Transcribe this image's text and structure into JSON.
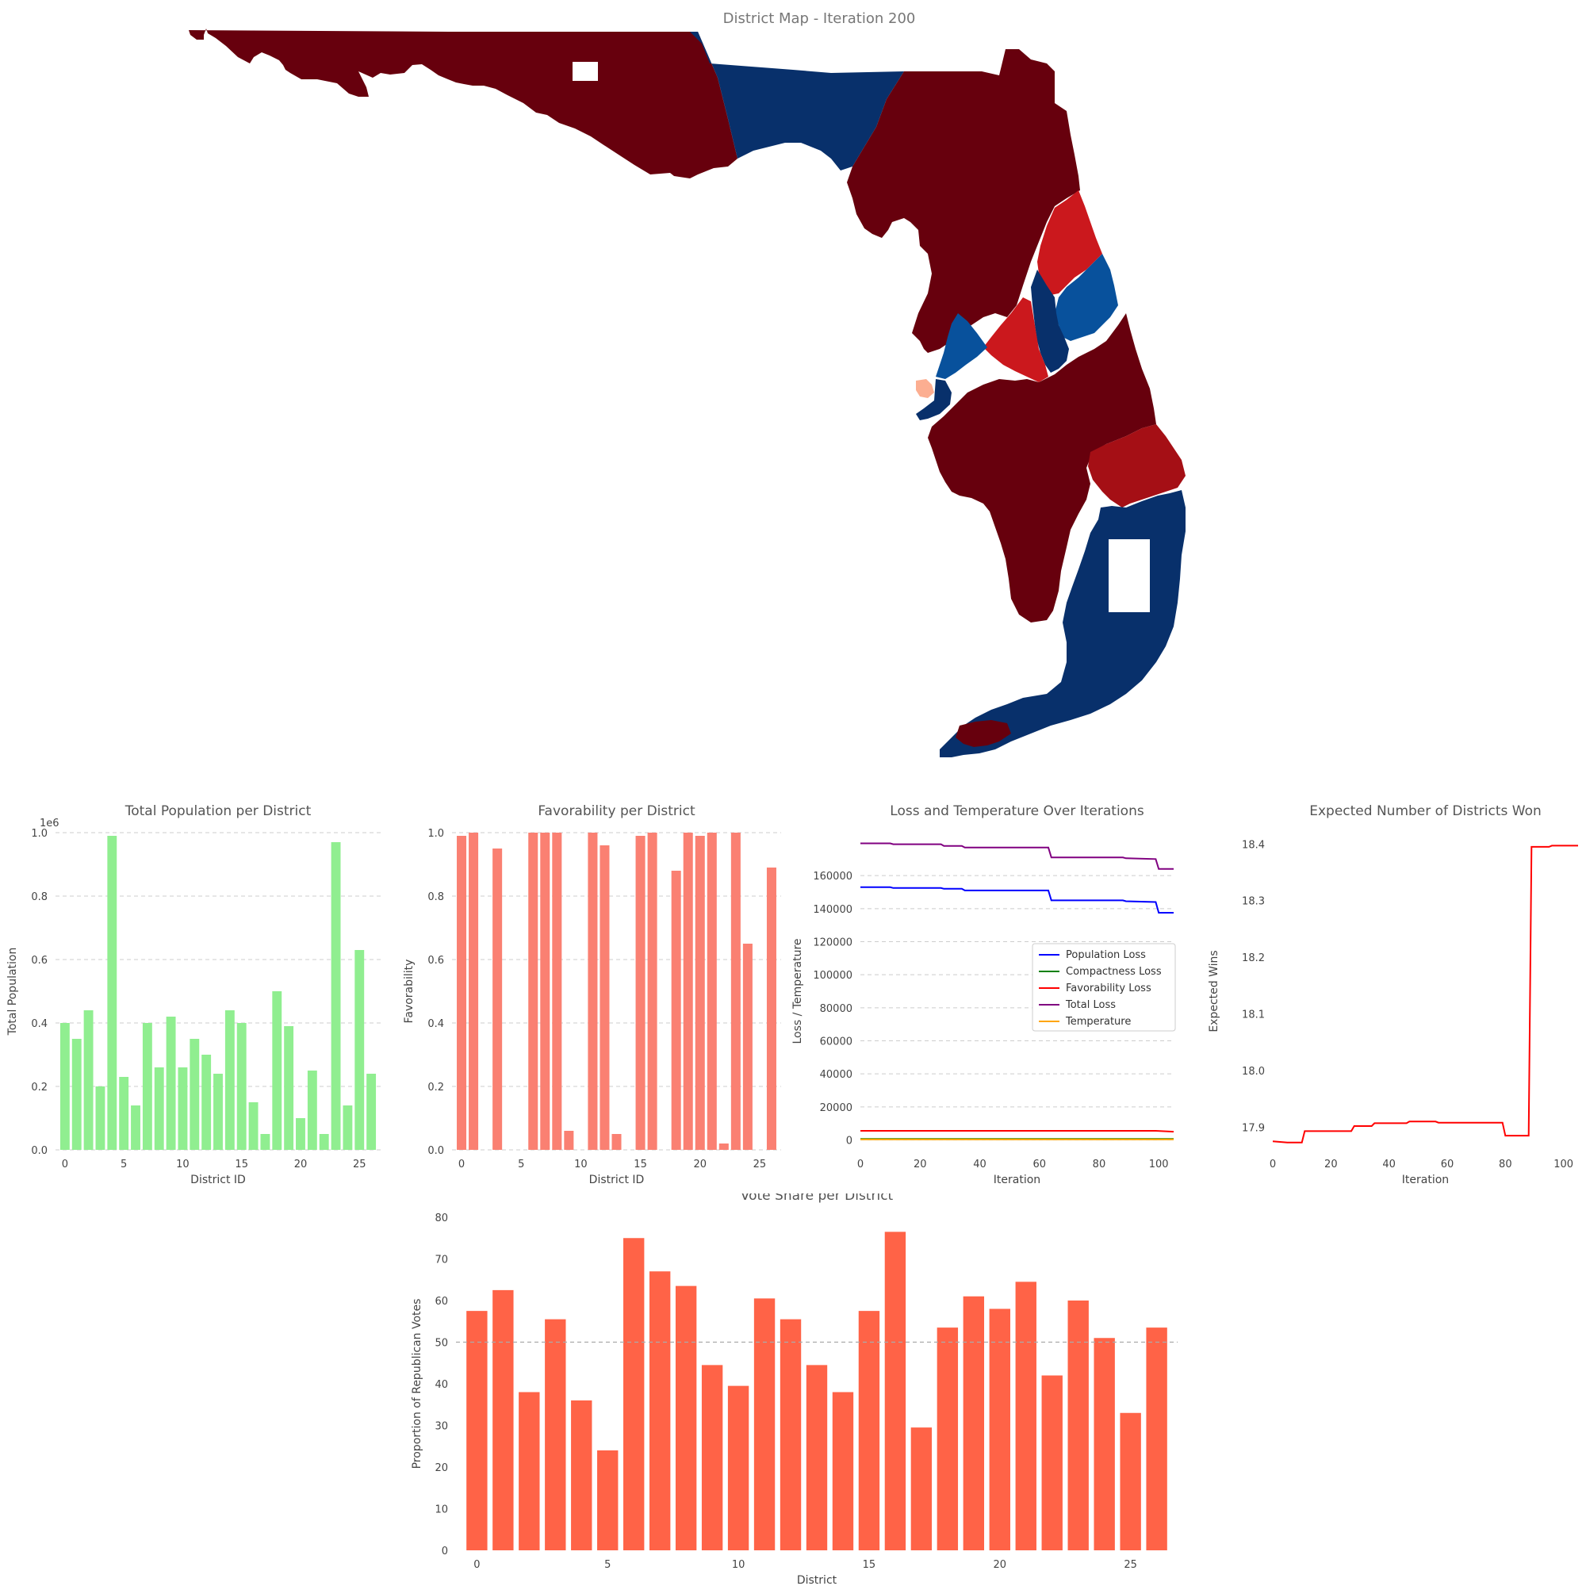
{
  "colors": {
    "rep_dark": "#67000d",
    "rep_mid": "#a50f15",
    "rep_bright": "#cb181d",
    "dem_dark": "#08306b",
    "dem_mid": "#08519c",
    "salmon_small": "#fcae91",
    "population_bar": "#90ee90",
    "favorability_bar": "#fa8072",
    "vote_bar": "#ff6347",
    "pop_loss": "#0000ff",
    "comp_loss": "#008000",
    "fav_loss": "#ff0000",
    "total_loss": "#800080",
    "temperature": "#ffa500",
    "expected_wins": "#ff0000"
  },
  "map": {
    "title": "District Map - Iteration 200"
  },
  "chart_data": [
    {
      "id": "population",
      "type": "bar",
      "title": "Total Population per District",
      "xlabel": "District ID",
      "ylabel": "Total Population",
      "offset_label": "1e6",
      "categories": [
        0,
        1,
        2,
        3,
        4,
        5,
        6,
        7,
        8,
        9,
        10,
        11,
        12,
        13,
        14,
        15,
        16,
        17,
        18,
        19,
        20,
        21,
        22,
        23,
        24,
        25,
        26
      ],
      "values": [
        0.4,
        0.35,
        0.44,
        0.2,
        0.99,
        0.23,
        0.14,
        0.4,
        0.26,
        0.42,
        0.26,
        0.35,
        0.3,
        0.24,
        0.44,
        0.4,
        0.15,
        0.05,
        0.5,
        0.39,
        0.1,
        0.25,
        0.05,
        0.97,
        0.14,
        0.63,
        0.24
      ],
      "ylim": [
        0,
        1.0
      ],
      "yticks": [
        "0.0",
        "0.2",
        "0.4",
        "0.6",
        "0.8",
        "1.0"
      ],
      "xticks": [
        "0",
        "5",
        "10",
        "15",
        "20",
        "25"
      ],
      "grid": true
    },
    {
      "id": "favorability",
      "type": "bar",
      "title": "Favorability per District",
      "xlabel": "District ID",
      "ylabel": "Favorability",
      "categories": [
        0,
        1,
        2,
        3,
        4,
        5,
        6,
        7,
        8,
        9,
        10,
        11,
        12,
        13,
        14,
        15,
        16,
        17,
        18,
        19,
        20,
        21,
        22,
        23,
        24,
        25,
        26
      ],
      "values": [
        0.99,
        1.0,
        0.0,
        0.95,
        0.0,
        0.0,
        1.0,
        1.0,
        1.0,
        0.06,
        0.0,
        1.0,
        0.96,
        0.05,
        0.0,
        0.99,
        1.0,
        0.0,
        0.88,
        1.0,
        0.99,
        1.0,
        0.02,
        1.0,
        0.65,
        0.0,
        0.89
      ],
      "ylim": [
        0,
        1.0
      ],
      "yticks": [
        "0.0",
        "0.2",
        "0.4",
        "0.6",
        "0.8",
        "1.0"
      ],
      "xticks": [
        "0",
        "5",
        "10",
        "15",
        "20",
        "25"
      ],
      "grid": true
    },
    {
      "id": "loss",
      "type": "line",
      "title": "Loss and Temperature Over Iterations",
      "xlabel": "Iteration",
      "ylabel": "Loss / Temperature",
      "xlim": [
        0,
        105
      ],
      "ylim": [
        -6000,
        186000
      ],
      "yticks": [
        "0",
        "20000",
        "40000",
        "60000",
        "80000",
        "100000",
        "120000",
        "140000",
        "160000"
      ],
      "xticks": [
        "0",
        "20",
        "40",
        "60",
        "80",
        "100"
      ],
      "legend_position": "center-right",
      "series": [
        {
          "name": "Population Loss",
          "x": [
            0,
            10,
            11,
            27,
            28,
            34,
            35,
            63,
            64,
            88,
            89,
            99,
            100,
            105
          ],
          "y": [
            153000,
            153000,
            152500,
            152500,
            152000,
            152000,
            151000,
            151000,
            145000,
            145000,
            144500,
            144000,
            137500,
            137500
          ]
        },
        {
          "name": "Compactness Loss",
          "x": [
            0,
            105
          ],
          "y": [
            600,
            600
          ]
        },
        {
          "name": "Favorability Loss",
          "x": [
            0,
            99,
            105
          ],
          "y": [
            5500,
            5500,
            5000
          ]
        },
        {
          "name": "Total Loss",
          "x": [
            0,
            10,
            11,
            27,
            28,
            34,
            35,
            63,
            64,
            88,
            89,
            99,
            100,
            105
          ],
          "y": [
            179500,
            179500,
            179000,
            179000,
            178000,
            178000,
            177000,
            177000,
            171000,
            171000,
            170500,
            170000,
            164000,
            164000
          ]
        },
        {
          "name": "Temperature",
          "x": [
            0,
            105
          ],
          "y": [
            300,
            300
          ]
        }
      ],
      "grid": true
    },
    {
      "id": "expected_wins",
      "type": "line",
      "title": "Expected Number of Districts Won",
      "xlabel": "Iteration",
      "ylabel": "Expected Wins",
      "xlim": [
        0,
        105
      ],
      "ylim": [
        17.86,
        18.42
      ],
      "yticks": [
        "17.9",
        "18.0",
        "18.1",
        "18.2",
        "18.3",
        "18.4"
      ],
      "xticks": [
        "0",
        "20",
        "40",
        "60",
        "80",
        "100"
      ],
      "series": [
        {
          "name": "",
          "x": [
            0,
            5,
            10,
            11,
            27,
            28,
            34,
            35,
            46,
            47,
            56,
            57,
            79,
            80,
            88,
            89,
            95,
            96,
            105
          ],
          "y": [
            17.875,
            17.873,
            17.873,
            17.893,
            17.893,
            17.902,
            17.902,
            17.907,
            17.907,
            17.91,
            17.91,
            17.908,
            17.908,
            17.885,
            17.885,
            18.395,
            18.395,
            18.397,
            18.397
          ]
        }
      ],
      "grid": false
    },
    {
      "id": "vote_share",
      "type": "bar",
      "title": "Vote Share per District",
      "xlabel": "District",
      "ylabel": "Proportion of Republican Votes",
      "categories": [
        0,
        1,
        2,
        3,
        4,
        5,
        6,
        7,
        8,
        9,
        10,
        11,
        12,
        13,
        14,
        15,
        16,
        17,
        18,
        19,
        20,
        21,
        22,
        23,
        24,
        25,
        26
      ],
      "values": [
        57.5,
        62.5,
        38,
        55.5,
        36,
        24,
        75,
        67,
        63.5,
        44.5,
        39.5,
        60.5,
        55.5,
        44.5,
        38,
        57.5,
        76.5,
        29.5,
        53.5,
        61,
        58,
        64.5,
        42,
        60,
        51,
        33,
        53.5
      ],
      "ylim": [
        0,
        80
      ],
      "yticks": [
        "0",
        "10",
        "20",
        "30",
        "40",
        "50",
        "60",
        "70",
        "80"
      ],
      "xticks": [
        "0",
        "5",
        "10",
        "15",
        "20",
        "25"
      ],
      "reference_line": 50,
      "grid": false
    }
  ]
}
